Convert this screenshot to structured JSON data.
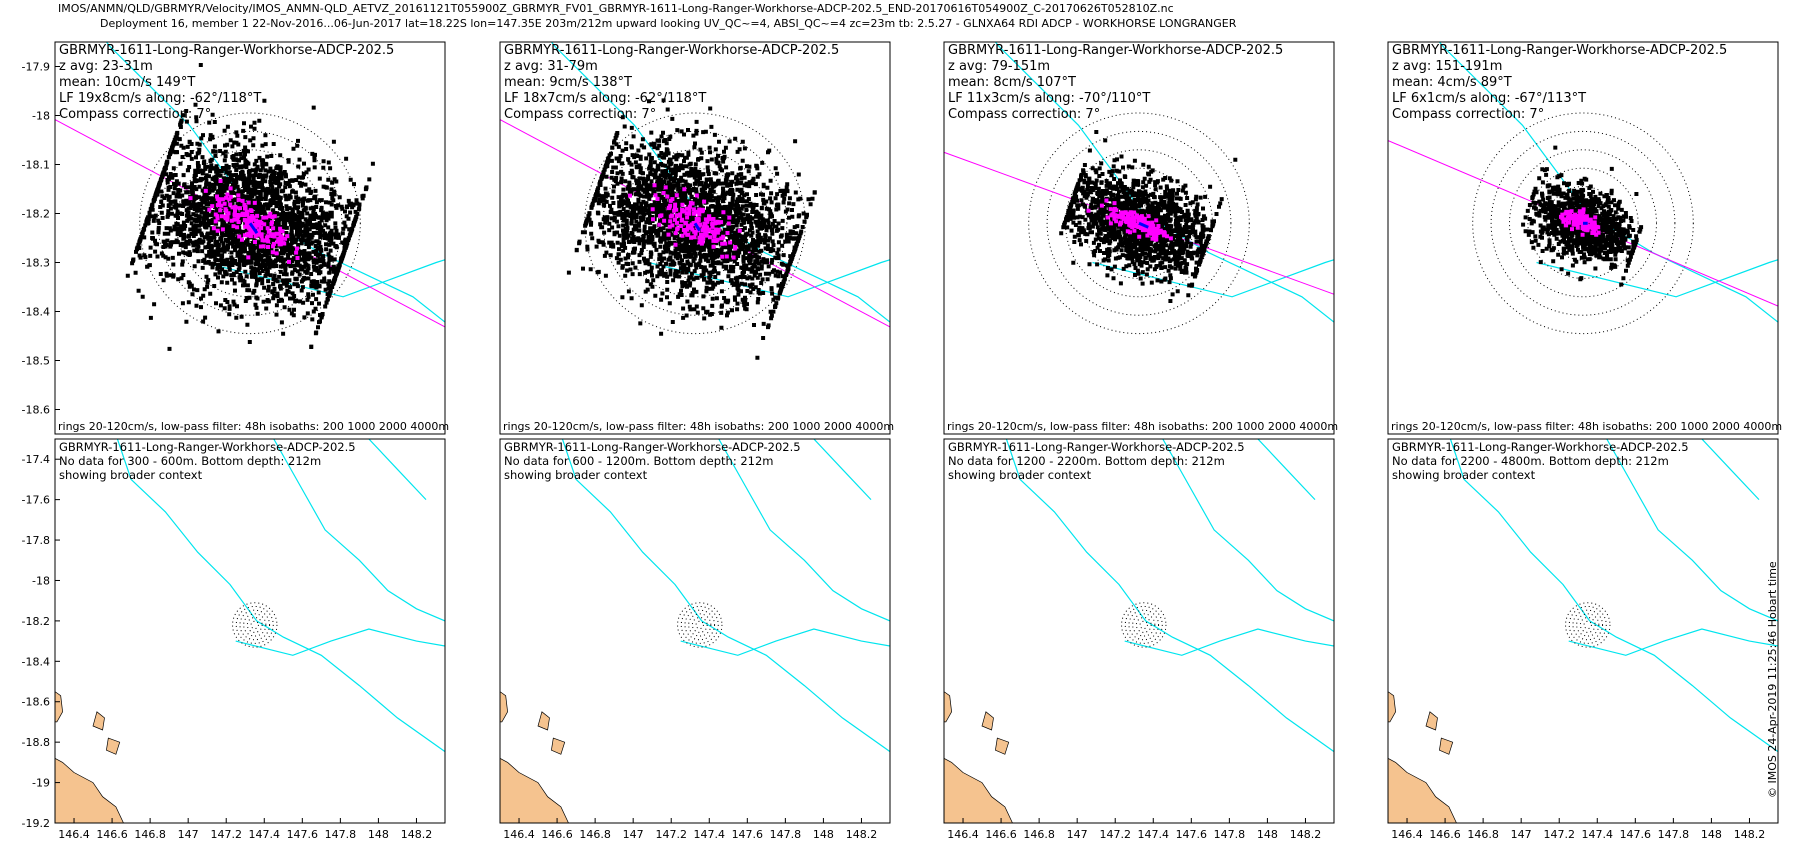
{
  "header": {
    "line1": "IMOS/ANMN/QLD/GBRMYR/Velocity/IMOS_ANMN-QLD_AETVZ_20161121T055900Z_GBRMYR_FV01_GBRMYR-1611-Long-Ranger-Workhorse-ADCP-202.5_END-20170616T054900Z_C-20170626T052810Z.nc",
    "line2": "Deployment 16, member 1 22-Nov-2016...06-Jun-2017 lat=18.22S lon=147.35E 203m/212m upward looking UV_QC~=4, ABSI_QC~=4 zc=23m tb: 2.5.27 - GLNXA64 RDI ADCP - WORKHORSE LONGRANGER"
  },
  "side_label": "© IMOS 24-Apr-2019 11:25:46 Hobart time",
  "colors": {
    "scatter": "#000000",
    "lowpass": "#ff00ff",
    "mean": "#0000ff",
    "isobath": "#00e5ee",
    "land": "#f5c38f",
    "rings": "#000000"
  },
  "chart_data": [
    {
      "type": "scatter",
      "row": 1,
      "col": 1,
      "title": "GBRMYR-1611-Long-Ranger-Workhorse-ADCP-202.5",
      "info": [
        "z avg: 23-31m",
        "mean: 10cm/s 149°T",
        "LF 19x8cm/s along: -62°/118°T",
        "Compass correction: 7°"
      ],
      "footer": "rings 20-120cm/s, low-pass filter: 48h isobaths: 200 1000 2000 4000m",
      "ylim": [
        -18.65,
        -17.85
      ],
      "yticks": [
        -17.9,
        -18,
        -18.1,
        -18.2,
        -18.3,
        -18.4,
        -18.5,
        -18.6
      ],
      "center": [
        147.35,
        -18.22
      ],
      "ring_speeds_cm_s": [
        20,
        40,
        60,
        80,
        100,
        120
      ],
      "cloud": {
        "sx": 0.13,
        "sy": 0.075,
        "dx": 0.21,
        "dy": 0.3,
        "count": 2600
      },
      "lf": {
        "sx": 0.05,
        "sy": 0.02,
        "count": 180
      },
      "mean_end": [
        147.365,
        -18.24
      ],
      "along_deg_true": 118
    },
    {
      "type": "scatter",
      "row": 1,
      "col": 2,
      "title": "GBRMYR-1611-Long-Ranger-Workhorse-ADCP-202.5",
      "info": [
        "z avg: 31-79m",
        "mean: 9cm/s 138°T",
        "LF 18x7cm/s along: -62°/118°T",
        "Compass correction: 7°"
      ],
      "footer": "rings 20-120cm/s, low-pass filter: 48h isobaths: 200 1000 2000 4000m",
      "ylim": [
        -18.65,
        -17.85
      ],
      "yticks": [],
      "center": [
        147.35,
        -18.22
      ],
      "ring_speeds_cm_s": [
        20,
        40,
        60,
        80,
        100,
        120
      ],
      "cloud": {
        "sx": 0.12,
        "sy": 0.07,
        "dx": 0.22,
        "dy": 0.3,
        "count": 2400
      },
      "lf": {
        "sx": 0.05,
        "sy": 0.02,
        "count": 170
      },
      "mean_end": [
        147.36,
        -18.235
      ],
      "along_deg_true": 118
    },
    {
      "type": "scatter",
      "row": 1,
      "col": 3,
      "title": "GBRMYR-1611-Long-Ranger-Workhorse-ADCP-202.5",
      "info": [
        "z avg: 79-151m",
        "mean: 8cm/s 107°T",
        "LF 11x3cm/s along: -70°/110°T",
        "Compass correction: 7°"
      ],
      "footer": "rings 20-120cm/s, low-pass filter: 48h isobaths: 200 1000 2000 4000m",
      "ylim": [
        -18.65,
        -17.85
      ],
      "yticks": [],
      "center": [
        147.35,
        -18.22
      ],
      "ring_speeds_cm_s": [
        20,
        40,
        60,
        80,
        100,
        120
      ],
      "cloud": {
        "sx": 0.08,
        "sy": 0.045,
        "dx": 0.15,
        "dy": 0.2,
        "count": 1500
      },
      "lf": {
        "sx": 0.035,
        "sy": 0.01,
        "count": 150
      },
      "mean_end": [
        147.37,
        -18.228
      ],
      "along_deg_true": 110
    },
    {
      "type": "scatter",
      "row": 1,
      "col": 4,
      "title": "GBRMYR-1611-Long-Ranger-Workhorse-ADCP-202.5",
      "info": [
        "z avg: 151-191m",
        "mean: 4cm/s 89°T",
        "LF 6x1cm/s along: -67°/113°T",
        "Compass correction: 7°"
      ],
      "footer": "rings 20-120cm/s, low-pass filter: 48h isobaths: 200 1000 2000 4000m",
      "ylim": [
        -18.65,
        -17.85
      ],
      "yticks": [],
      "center": [
        147.35,
        -18.22
      ],
      "ring_speeds_cm_s": [
        20,
        40,
        60,
        80,
        100,
        120
      ],
      "cloud": {
        "sx": 0.055,
        "sy": 0.035,
        "dx": 0.12,
        "dy": 0.15,
        "count": 1000
      },
      "lf": {
        "sx": 0.025,
        "sy": 0.008,
        "count": 120
      },
      "mean_end": [
        147.36,
        -18.22
      ],
      "along_deg_true": 113
    },
    {
      "type": "scatter",
      "row": 2,
      "col": 1,
      "title": "GBRMYR-1611-Long-Ranger-Workhorse-ADCP-202.5",
      "info": [
        "No data for 300 - 600m. Bottom depth: 212m",
        "showing broader context"
      ],
      "xlim": [
        146.3,
        148.35
      ],
      "ylim": [
        -19.2,
        -17.3
      ],
      "xticks": [
        146.4,
        146.6,
        146.8,
        147,
        147.2,
        147.4,
        147.6,
        147.8,
        148,
        148.2
      ],
      "xticklabels": [
        "146.4",
        "146.6",
        "146.8",
        "147",
        "147.2",
        "147.4",
        "147.6",
        "147.8",
        "148",
        "148.2"
      ],
      "yticks": [
        -17.4,
        -17.6,
        -17.8,
        -18,
        -18.2,
        -18.4,
        -18.6,
        -18.8,
        -19,
        -19.2
      ],
      "center": [
        147.35,
        -18.22
      ],
      "ring_speeds_cm_s": [
        20,
        40,
        60,
        80,
        100,
        120
      ]
    },
    {
      "type": "scatter",
      "row": 2,
      "col": 2,
      "title": "GBRMYR-1611-Long-Ranger-Workhorse-ADCP-202.5",
      "info": [
        "No data for 600 - 1200m. Bottom depth: 212m",
        "showing broader context"
      ],
      "xlim": [
        146.3,
        148.35
      ],
      "ylim": [
        -19.2,
        -17.3
      ],
      "xticks": [
        146.4,
        146.6,
        146.8,
        147,
        147.2,
        147.4,
        147.6,
        147.8,
        148,
        148.2
      ],
      "xticklabels": [
        "146.4",
        "146.6",
        "146.8",
        "147",
        "147.2",
        "147.4",
        "147.6",
        "147.8",
        "148",
        "148.2"
      ],
      "yticks": [],
      "center": [
        147.35,
        -18.22
      ],
      "ring_speeds_cm_s": [
        20,
        40,
        60,
        80,
        100,
        120
      ]
    },
    {
      "type": "scatter",
      "row": 2,
      "col": 3,
      "title": "GBRMYR-1611-Long-Ranger-Workhorse-ADCP-202.5",
      "info": [
        "No data for 1200 - 2200m. Bottom depth: 212m",
        "showing broader context"
      ],
      "xlim": [
        146.3,
        148.35
      ],
      "ylim": [
        -19.2,
        -17.3
      ],
      "xticks": [
        146.4,
        146.6,
        146.8,
        147,
        147.2,
        147.4,
        147.6,
        147.8,
        148,
        148.2
      ],
      "xticklabels": [
        "146.4",
        "146.6",
        "146.8",
        "147",
        "147.2",
        "147.4",
        "147.6",
        "147.8",
        "148",
        "148.2"
      ],
      "yticks": [],
      "center": [
        147.35,
        -18.22
      ],
      "ring_speeds_cm_s": [
        20,
        40,
        60,
        80,
        100,
        120
      ]
    },
    {
      "type": "scatter",
      "row": 2,
      "col": 4,
      "title": "GBRMYR-1611-Long-Ranger-Workhorse-ADCP-202.5",
      "info": [
        "No data for 2200 - 4800m. Bottom depth: 212m",
        "showing broader context"
      ],
      "xlim": [
        146.3,
        148.35
      ],
      "ylim": [
        -19.2,
        -17.3
      ],
      "xticks": [
        146.4,
        146.6,
        146.8,
        147,
        147.2,
        147.4,
        147.6,
        147.8,
        148,
        148.2
      ],
      "xticklabels": [
        "146.4",
        "146.6",
        "146.8",
        "147",
        "147.2",
        "147.4",
        "147.6",
        "147.8",
        "148",
        "148.2"
      ],
      "yticks": [],
      "center": [
        147.35,
        -18.22
      ],
      "ring_speeds_cm_s": [
        20,
        40,
        60,
        80,
        100,
        120
      ]
    }
  ]
}
